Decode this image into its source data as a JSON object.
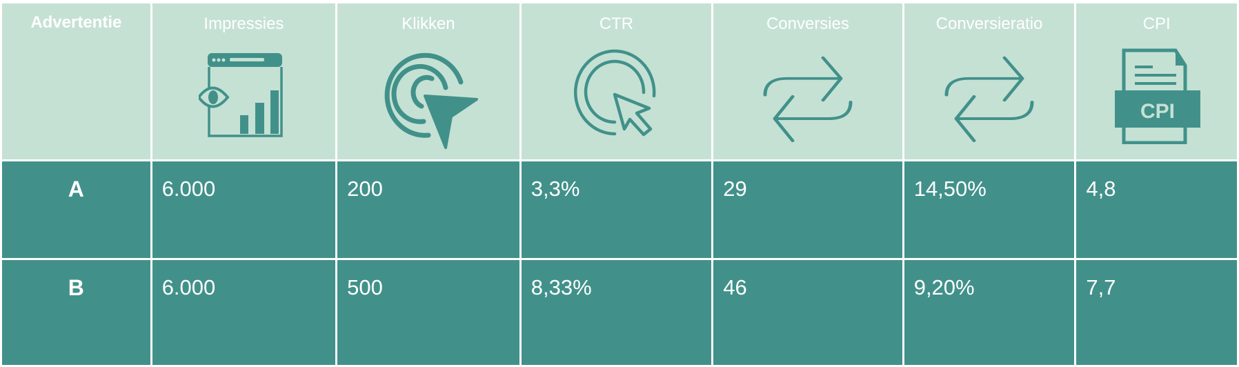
{
  "table": {
    "columns": [
      {
        "label": "Advertentie",
        "icon": ""
      },
      {
        "label": "Impressies",
        "icon": "browser-eye-chart-icon"
      },
      {
        "label": "Klikken",
        "icon": "click-pointer-icon"
      },
      {
        "label": "CTR",
        "icon": "cursor-click-icon"
      },
      {
        "label": "Conversies",
        "icon": "repeat-arrows-icon"
      },
      {
        "label": "Conversieratio",
        "icon": "repeat-arrows-icon"
      },
      {
        "label": "CPI",
        "icon": "cpi-file-icon",
        "icon_text": "CPI"
      }
    ],
    "rows": [
      {
        "cells": [
          "A",
          "6.000",
          "200",
          "3,3%",
          "29",
          "14,50%",
          "4,8"
        ]
      },
      {
        "cells": [
          "B",
          "6.000",
          "500",
          "8,33%",
          "46",
          "9,20%",
          "7,7"
        ]
      }
    ]
  },
  "colors": {
    "header_bg": "#c5e1d4",
    "body_bg": "#41918a",
    "icon": "#41918a",
    "text": "#ffffff"
  }
}
